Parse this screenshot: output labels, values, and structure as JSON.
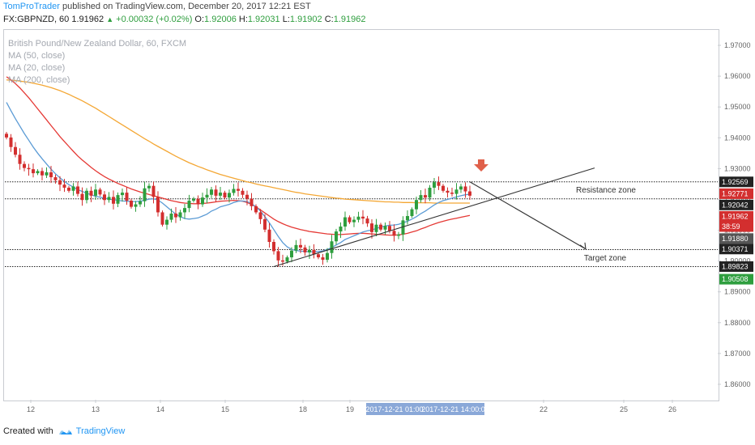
{
  "header": {
    "author": "TomProTrader",
    "published_text": "published on TradingView.com, December 20, 2017 12:21 EST"
  },
  "quote": {
    "symbol": "FX:GBPNZD, 60",
    "last": "1.91962",
    "change": "+0.00032 (+0.02%)",
    "open_label": "O:",
    "open": "1.92006",
    "high_label": "H:",
    "high": "1.92031",
    "low_label": "L:",
    "low": "1.91902",
    "close_label": "C:",
    "close": "1.91962"
  },
  "legend": [
    "British Pound/New Zealand Dollar, 60, FXCM",
    "MA (50, close)",
    "MA (20, close)",
    "MA (200, close)"
  ],
  "footer": {
    "created_with": "Created with",
    "brand": "TradingView"
  },
  "colors": {
    "up_candle": "#2e9e3e",
    "down_candle": "#d32f2f",
    "ma50": "#e53935",
    "ma20": "#5b9bd5",
    "ma200": "#f4a734",
    "arrow_marker": "#e0604a",
    "badge_dark": "#222222",
    "badge_red": "#d32f2f",
    "badge_green": "#2e9e3e",
    "badge_grey": "#555555",
    "badge_blue": "#8aa8d8"
  },
  "chart_data": {
    "type": "candlestick",
    "ylim": [
      1.855,
      1.975
    ],
    "y_ticks": [
      "1.97000",
      "1.96000",
      "1.95000",
      "1.94000",
      "1.93000",
      "1.92000",
      "1.91000",
      "1.90000",
      "1.89000",
      "1.88000",
      "1.87000",
      "1.86000"
    ],
    "x_ticks": [
      "12",
      "13",
      "14",
      "15",
      "18",
      "19",
      "22",
      "25",
      "26"
    ],
    "x_cursor_labels": [
      "2017-12-21 01:00",
      "2017-12-21 14:00:00"
    ],
    "price_badges": [
      {
        "label": "1.92569",
        "value": 1.92569,
        "style": "dark"
      },
      {
        "label": "1.92771",
        "value": 1.92185,
        "style": "red"
      },
      {
        "label": "1.92042",
        "value": 1.9182,
        "style": "dark"
      },
      {
        "label": "1.91962",
        "value": 1.9145,
        "style": "red"
      },
      {
        "label": "38:59",
        "value": 1.9112,
        "style": "red"
      },
      {
        "label": "1.91880",
        "value": 1.9073,
        "style": "grey"
      },
      {
        "label": "1.90371",
        "value": 1.9039,
        "style": "dark"
      },
      {
        "label": "1.89823",
        "value": 1.8982,
        "style": "dark"
      },
      {
        "label": "1.90508",
        "value": 1.8941,
        "style": "green"
      }
    ],
    "zones": [
      {
        "label": "Resistance zone",
        "top": 1.9257,
        "bottom": 1.9202
      },
      {
        "label": "Target zone",
        "top": 1.9037,
        "bottom": 1.8982
      }
    ],
    "closes": [
      1.9401,
      1.937,
      1.9345,
      1.9315,
      1.9302,
      1.9298,
      1.9285,
      1.9292,
      1.9278,
      1.9288,
      1.9272,
      1.9262,
      1.9248,
      1.9238,
      1.9228,
      1.9242,
      1.9218,
      1.9198,
      1.9228,
      1.9212,
      1.9232,
      1.9216,
      1.9198,
      1.9208,
      1.9186,
      1.9214,
      1.9222,
      1.9196,
      1.9176,
      1.9184,
      1.9194,
      1.9236,
      1.9244,
      1.9208,
      1.9158,
      1.9118,
      1.9134,
      1.9154,
      1.9142,
      1.9158,
      1.9172,
      1.9196,
      1.9202,
      1.9184,
      1.9206,
      1.9215,
      1.9232,
      1.9212,
      1.9222,
      1.9206,
      1.9221,
      1.9234,
      1.9228,
      1.9215,
      1.9202,
      1.9178,
      1.9158,
      1.9136,
      1.9102,
      1.9062,
      1.9032,
      1.9002,
      1.8998,
      1.9012,
      1.9034,
      1.9052,
      1.9044,
      1.9028,
      1.9036,
      1.9022,
      1.9012,
      1.9004,
      1.9026,
      1.9064,
      1.9096,
      1.9112,
      1.9142,
      1.9126,
      1.9134,
      1.9144,
      1.9138,
      1.9122,
      1.9094,
      1.9118,
      1.9102,
      1.9114,
      1.9098,
      1.9082,
      1.9086,
      1.9132,
      1.9146,
      1.9168,
      1.9198,
      1.9214,
      1.9206,
      1.9238,
      1.9256,
      1.9244,
      1.9228,
      1.9222,
      1.9218,
      1.9232,
      1.9242,
      1.9226,
      1.9212
    ],
    "ma20": [
      1.9515,
      1.9488,
      1.9462,
      1.9438,
      1.9414,
      1.9392,
      1.937,
      1.935,
      1.9332,
      1.9315,
      1.9298,
      1.9283,
      1.927,
      1.9258,
      1.9248,
      1.924,
      1.9232,
      1.9226,
      1.922,
      1.9215,
      1.921,
      1.9207,
      1.9204,
      1.9201,
      1.9199,
      1.9197,
      1.9195,
      1.9194,
      1.9193,
      1.9193,
      1.9194,
      1.9197,
      1.9201,
      1.9202,
      1.9198,
      1.9188,
      1.9176,
      1.9164,
      1.9152,
      1.9144,
      1.9138,
      1.9136,
      1.9138,
      1.914,
      1.9146,
      1.9152,
      1.9162,
      1.9168,
      1.9176,
      1.918,
      1.9184,
      1.919,
      1.9194,
      1.9195,
      1.9193,
      1.9186,
      1.9176,
      1.9162,
      1.9144,
      1.9124,
      1.9102,
      1.908,
      1.906,
      1.9046,
      1.9038,
      1.9034,
      1.9032,
      1.9031,
      1.903,
      1.903,
      1.9031,
      1.9033,
      1.9037,
      1.9044,
      1.9052,
      1.906,
      1.907,
      1.9076,
      1.9082,
      1.9088,
      1.9094,
      1.9098,
      1.9101,
      1.9106,
      1.911,
      1.9114,
      1.9116,
      1.9117,
      1.9119,
      1.9124,
      1.9129,
      1.9136,
      1.9144,
      1.9154,
      1.9162,
      1.9172,
      1.9182,
      1.919,
      1.9196,
      1.92,
      1.9204,
      1.9208,
      1.9212,
      1.9215,
      1.9217
    ],
    "ma50": [
      1.9598,
      1.9588,
      1.9576,
      1.9562,
      1.9546,
      1.953,
      1.9512,
      1.9494,
      1.9476,
      1.9458,
      1.944,
      1.9422,
      1.9404,
      1.9388,
      1.9372,
      1.9356,
      1.9341,
      1.9328,
      1.9316,
      1.9304,
      1.9293,
      1.9283,
      1.9274,
      1.9266,
      1.9259,
      1.9252,
      1.9246,
      1.924,
      1.9234,
      1.9229,
      1.9224,
      1.922,
      1.9216,
      1.9212,
      1.9208,
      1.9204,
      1.92,
      1.9196,
      1.9193,
      1.919,
      1.9188,
      1.9187,
      1.9186,
      1.9186,
      1.9187,
      1.9188,
      1.919,
      1.9192,
      1.9194,
      1.9195,
      1.9196,
      1.9197,
      1.9196,
      1.9194,
      1.919,
      1.9184,
      1.9176,
      1.9166,
      1.9156,
      1.9146,
      1.9136,
      1.9128,
      1.9121,
      1.9115,
      1.911,
      1.9106,
      1.9102,
      1.9099,
      1.9096,
      1.9094,
      1.9092,
      1.909,
      1.9088,
      1.9087,
      1.9086,
      1.9086,
      1.9087,
      1.9088,
      1.9089,
      1.909,
      1.909,
      1.9089,
      1.9088,
      1.9087,
      1.9086,
      1.9085,
      1.9084,
      1.9084,
      1.9085,
      1.9087,
      1.909,
      1.9094,
      1.9098,
      1.9104,
      1.9109,
      1.9115,
      1.912,
      1.9125,
      1.9129,
      1.9133,
      1.9136,
      1.9139,
      1.9142,
      1.9145,
      1.9148
    ],
    "ma200": [
      1.9588,
      1.9587,
      1.9586,
      1.9584,
      1.9582,
      1.958,
      1.9577,
      1.9574,
      1.9571,
      1.9567,
      1.9563,
      1.9558,
      1.9553,
      1.9547,
      1.9541,
      1.9534,
      1.9527,
      1.952,
      1.9512,
      1.9504,
      1.9496,
      1.9487,
      1.9478,
      1.9469,
      1.946,
      1.9451,
      1.9442,
      1.9433,
      1.9424,
      1.9415,
      1.9406,
      1.9397,
      1.9389,
      1.938,
      1.9372,
      1.9364,
      1.9356,
      1.9348,
      1.934,
      1.9333,
      1.9326,
      1.9319,
      1.9313,
      1.9307,
      1.9302,
      1.9296,
      1.9291,
      1.9286,
      1.9281,
      1.9277,
      1.9273,
      1.9269,
      1.9265,
      1.9261,
      1.9257,
      1.9254,
      1.925,
      1.9247,
      1.9244,
      1.9241,
      1.9238,
      1.9235,
      1.9232,
      1.9229,
      1.9226,
      1.9223,
      1.9221,
      1.9218,
      1.9216,
      1.9214,
      1.9212,
      1.921,
      1.9208,
      1.9206,
      1.9204,
      1.9203,
      1.9201,
      1.92,
      1.9199,
      1.9198,
      1.9197,
      1.9196,
      1.9195,
      1.9194,
      1.9193,
      1.9192,
      1.9192,
      1.9191,
      1.9191,
      1.919,
      1.919,
      1.919,
      1.9189,
      1.9189,
      1.9189,
      1.9189,
      1.9188,
      1.9188,
      1.9188,
      1.9188,
      1.9188,
      1.9188,
      1.9188,
      1.9188,
      1.9188
    ],
    "trendlines": [
      {
        "name": "channel-line",
        "from": [
          60,
          1.8982
        ],
        "to": [
          132,
          1.9302
        ]
      },
      {
        "name": "projection-line",
        "from": [
          104,
          1.9257
        ],
        "to": [
          130,
          1.9039
        ]
      }
    ]
  }
}
